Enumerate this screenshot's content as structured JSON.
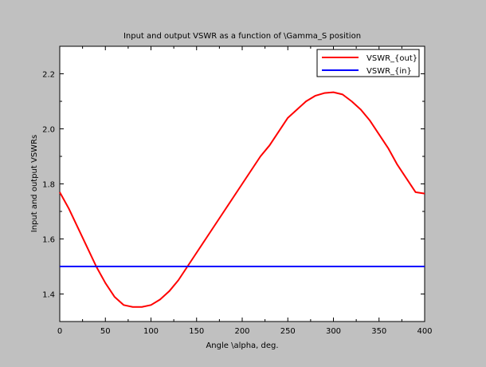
{
  "chart_data": {
    "type": "line",
    "title": "Input and output VSWR as a function of \\Gamma_S position",
    "xlabel": "Angle \\alpha, deg.",
    "ylabel": "Input and output VSWRs",
    "xlim": [
      0,
      400
    ],
    "ylim": [
      1.3,
      2.3
    ],
    "xticks": [
      0,
      50,
      100,
      150,
      200,
      250,
      300,
      350,
      400
    ],
    "yticks": [
      1.4,
      1.6,
      1.8,
      2.0,
      2.2
    ],
    "grid": false,
    "legend_position": "top-right",
    "series": [
      {
        "name": "VSWR_{out}",
        "color": "#ff0000",
        "x": [
          0,
          10,
          20,
          30,
          40,
          50,
          60,
          70,
          80,
          90,
          100,
          110,
          120,
          130,
          140,
          150,
          160,
          170,
          180,
          190,
          200,
          210,
          220,
          230,
          240,
          250,
          260,
          270,
          280,
          290,
          300,
          310,
          320,
          330,
          340,
          350,
          360,
          370,
          380,
          390,
          400
        ],
        "y": [
          1.77,
          1.71,
          1.64,
          1.57,
          1.5,
          1.44,
          1.39,
          1.36,
          1.353,
          1.353,
          1.36,
          1.38,
          1.41,
          1.45,
          1.5,
          1.55,
          1.6,
          1.65,
          1.7,
          1.75,
          1.8,
          1.85,
          1.9,
          1.94,
          1.99,
          2.04,
          2.07,
          2.1,
          2.12,
          2.13,
          2.133,
          2.125,
          2.1,
          2.07,
          2.03,
          1.98,
          1.93,
          1.87,
          1.82,
          1.77,
          1.765
        ]
      },
      {
        "name": "VSWR_{in}",
        "color": "#0000ff",
        "x": [
          0,
          400
        ],
        "y": [
          1.5,
          1.5
        ]
      }
    ]
  }
}
